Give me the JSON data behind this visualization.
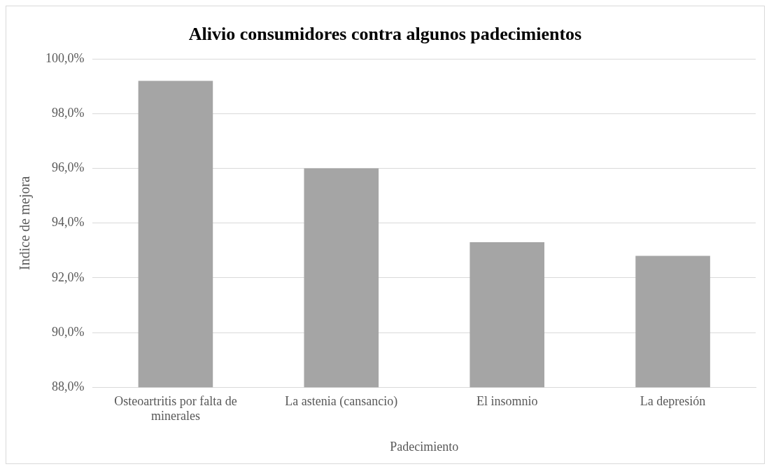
{
  "chart_data": {
    "type": "bar",
    "title": "Alivio consumidores contra algunos padecimientos",
    "xlabel": "Padecimiento",
    "ylabel": "Indice de mejora",
    "categories": [
      "Osteoartritis por falta de minerales",
      "La astenia (cansancio)",
      "El insomnio",
      "La depresión"
    ],
    "values": [
      99.2,
      96.0,
      93.3,
      92.8
    ],
    "color": "#a5a5a5",
    "ylim": [
      88,
      100
    ],
    "yticks": [
      {
        "value": 88,
        "label": "88,0%"
      },
      {
        "value": 90,
        "label": "90,0%"
      },
      {
        "value": 92,
        "label": "92,0%"
      },
      {
        "value": 94,
        "label": "94,0%"
      },
      {
        "value": 96,
        "label": "96,0%"
      },
      {
        "value": 98,
        "label": "98,0%"
      },
      {
        "value": 100,
        "label": "100,0%"
      }
    ],
    "grid": "y",
    "legend": false
  }
}
